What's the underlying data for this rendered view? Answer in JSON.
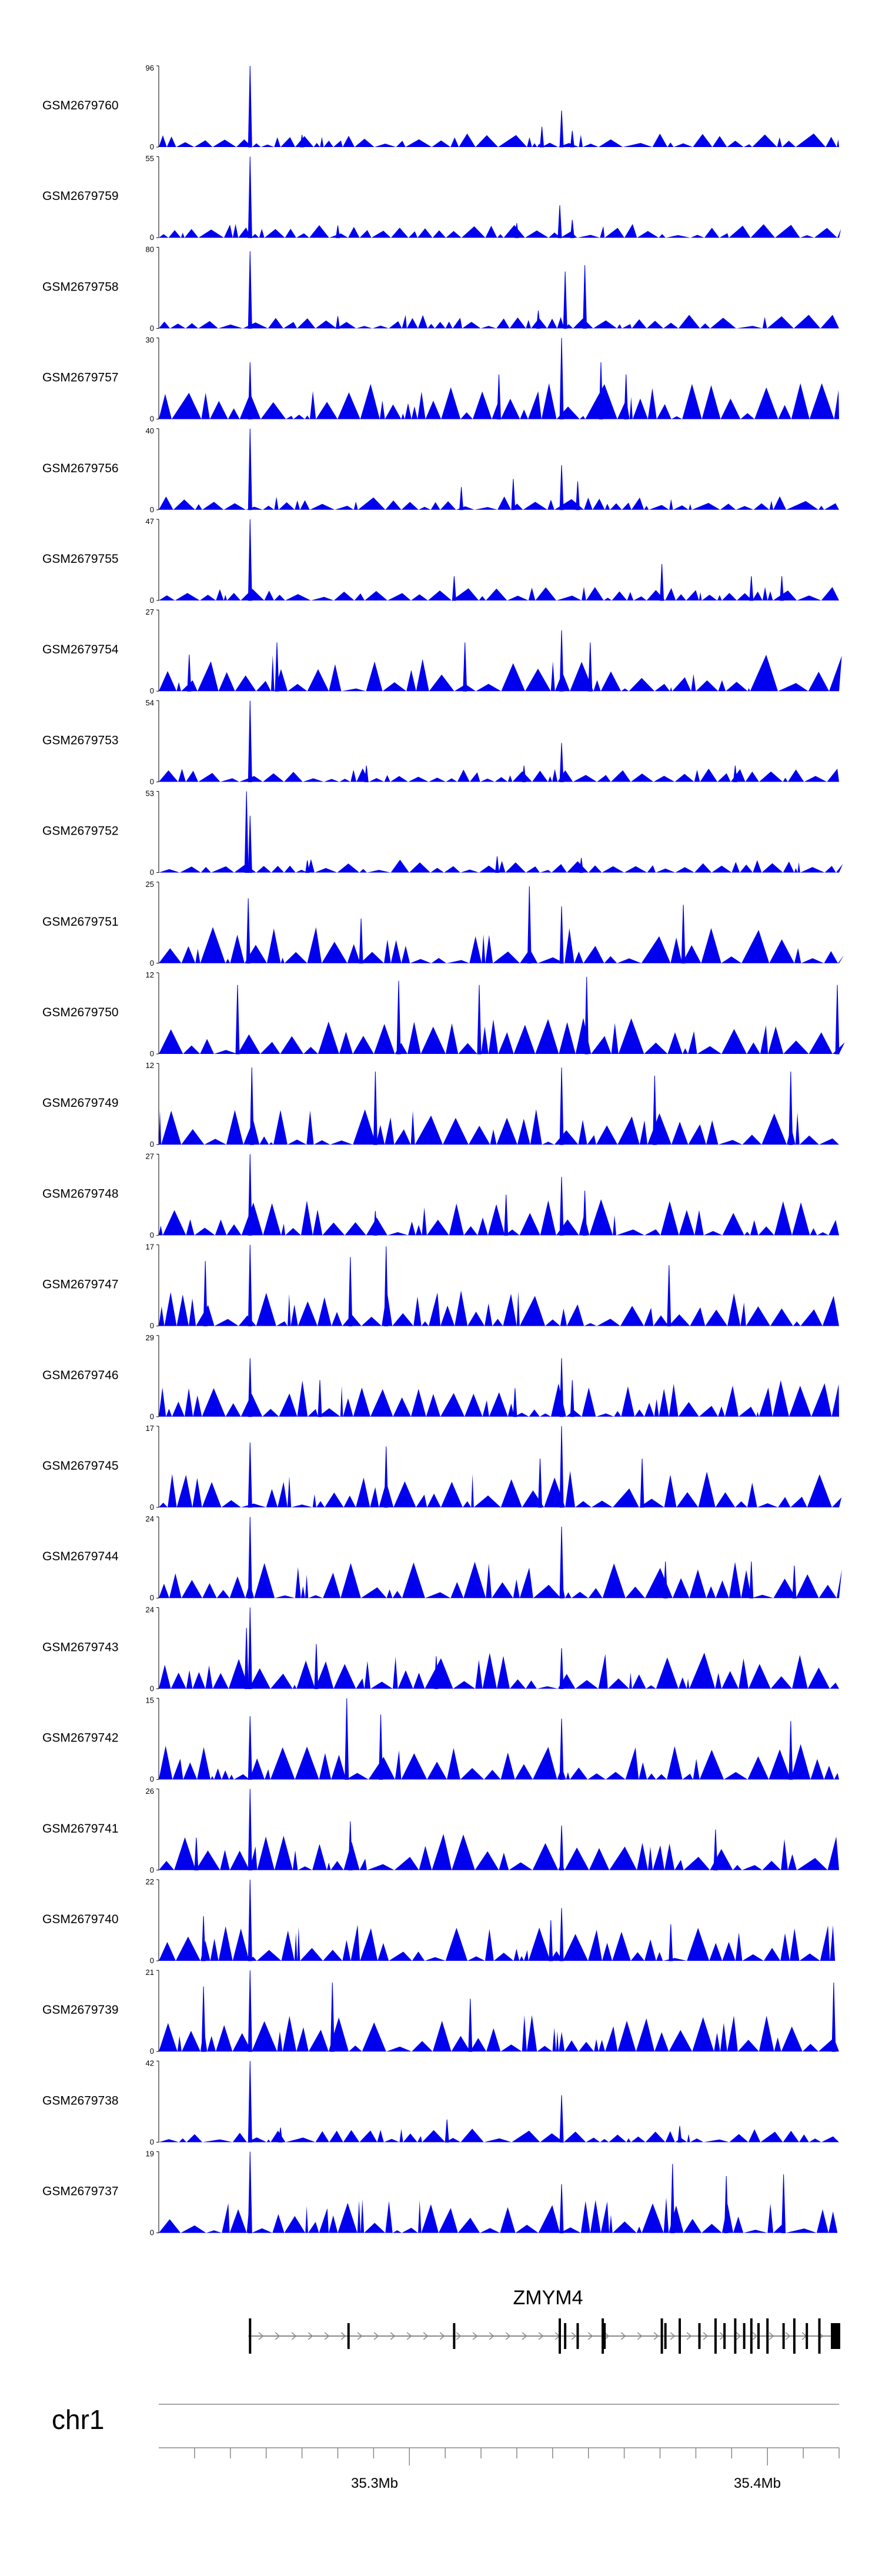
{
  "chart_data": {
    "type": "area",
    "title": "",
    "region": {
      "chromosome": "chr1",
      "start_mb": 35.23,
      "end_mb": 35.42
    },
    "fill_color": "#0000ee",
    "axis_tick_labels": [
      "35.3Mb",
      "35.4Mb"
    ],
    "gene": {
      "name": "ZMYM4",
      "strand": "+",
      "start_mb": 35.255,
      "end_mb": 35.42
    },
    "tracks": [
      {
        "name": "GSM2679760",
        "ymax": "96",
        "ymin": "0",
        "peaks": [
          [
            35.2555,
            1.0
          ],
          [
            35.3425,
            0.45
          ],
          [
            35.337,
            0.25
          ],
          [
            35.3455,
            0.2
          ],
          [
            35.27,
            0.15
          ]
        ]
      },
      {
        "name": "GSM2679759",
        "ymax": "55",
        "ymin": "0",
        "peaks": [
          [
            35.2555,
            1.0
          ],
          [
            35.342,
            0.4
          ],
          [
            35.3455,
            0.22
          ],
          [
            35.33,
            0.18
          ],
          [
            35.28,
            0.15
          ]
        ]
      },
      {
        "name": "GSM2679758",
        "ymax": "80",
        "ymin": "0",
        "peaks": [
          [
            35.2555,
            0.95
          ],
          [
            35.3435,
            0.7
          ],
          [
            35.349,
            0.78
          ],
          [
            35.336,
            0.22
          ],
          [
            35.28,
            0.15
          ]
        ]
      },
      {
        "name": "GSM2679757",
        "ymax": "30",
        "ymin": "0",
        "peaks": [
          [
            35.2555,
            0.7
          ],
          [
            35.3425,
            1.0
          ],
          [
            35.3535,
            0.7
          ],
          [
            35.325,
            0.55
          ],
          [
            35.3605,
            0.55
          ]
        ]
      },
      {
        "name": "GSM2679756",
        "ymax": "40",
        "ymin": "0",
        "peaks": [
          [
            35.2555,
            1.0
          ],
          [
            35.3425,
            0.55
          ],
          [
            35.329,
            0.38
          ],
          [
            35.347,
            0.35
          ],
          [
            35.3145,
            0.28
          ]
        ]
      },
      {
        "name": "GSM2679755",
        "ymax": "47",
        "ymin": "0",
        "peaks": [
          [
            35.2555,
            1.0
          ],
          [
            35.3705,
            0.45
          ],
          [
            35.3125,
            0.3
          ],
          [
            35.3955,
            0.3
          ],
          [
            35.404,
            0.3
          ]
        ]
      },
      {
        "name": "GSM2679754",
        "ymax": "27",
        "ymin": "0",
        "peaks": [
          [
            35.3425,
            0.75
          ],
          [
            35.263,
            0.6
          ],
          [
            35.3155,
            0.6
          ],
          [
            35.3505,
            0.6
          ],
          [
            35.2385,
            0.45
          ]
        ]
      },
      {
        "name": "GSM2679753",
        "ymax": "54",
        "ymin": "0",
        "peaks": [
          [
            35.2555,
            1.0
          ],
          [
            35.3425,
            0.48
          ],
          [
            35.288,
            0.2
          ],
          [
            35.332,
            0.2
          ],
          [
            35.391,
            0.2
          ]
        ]
      },
      {
        "name": "GSM2679752",
        "ymax": "53",
        "ymin": "0",
        "peaks": [
          [
            35.2545,
            1.0
          ],
          [
            35.2555,
            0.7
          ],
          [
            35.3245,
            0.2
          ],
          [
            35.348,
            0.18
          ],
          [
            35.2715,
            0.15
          ]
        ]
      },
      {
        "name": "GSM2679751",
        "ymax": "25",
        "ymin": "0",
        "peaks": [
          [
            35.3335,
            0.95
          ],
          [
            35.255,
            0.8
          ],
          [
            35.3425,
            0.7
          ],
          [
            35.3765,
            0.72
          ],
          [
            35.2865,
            0.55
          ]
        ]
      },
      {
        "name": "GSM2679750",
        "ymax": "12",
        "ymin": "0",
        "peaks": [
          [
            35.3495,
            0.95
          ],
          [
            35.252,
            0.85
          ],
          [
            35.297,
            0.9
          ],
          [
            35.3195,
            0.85
          ],
          [
            35.4195,
            0.85
          ]
        ]
      },
      {
        "name": "GSM2679749",
        "ymax": "12",
        "ymin": "0",
        "peaks": [
          [
            35.256,
            0.95
          ],
          [
            35.3425,
            0.95
          ],
          [
            35.4065,
            0.9
          ],
          [
            35.2905,
            0.9
          ],
          [
            35.3685,
            0.85
          ]
        ]
      },
      {
        "name": "GSM2679748",
        "ymax": "27",
        "ymin": "0",
        "peaks": [
          [
            35.2555,
            1.0
          ],
          [
            35.3425,
            0.72
          ],
          [
            35.349,
            0.55
          ],
          [
            35.327,
            0.5
          ],
          [
            35.2905,
            0.3
          ]
        ]
      },
      {
        "name": "GSM2679747",
        "ymax": "17",
        "ymin": "0",
        "peaks": [
          [
            35.2555,
            1.0
          ],
          [
            35.2935,
            0.98
          ],
          [
            35.2835,
            0.85
          ],
          [
            35.243,
            0.8
          ],
          [
            35.3725,
            0.75
          ]
        ]
      },
      {
        "name": "GSM2679746",
        "ymax": "29",
        "ymin": "0",
        "peaks": [
          [
            35.2555,
            0.72
          ],
          [
            35.3425,
            0.72
          ],
          [
            35.275,
            0.45
          ],
          [
            35.3455,
            0.45
          ],
          [
            35.3295,
            0.35
          ]
        ]
      },
      {
        "name": "GSM2679745",
        "ymax": "17",
        "ymin": "0",
        "peaks": [
          [
            35.3425,
            1.0
          ],
          [
            35.2555,
            0.8
          ],
          [
            35.2935,
            0.75
          ],
          [
            35.3365,
            0.6
          ],
          [
            35.365,
            0.6
          ]
        ]
      },
      {
        "name": "GSM2679744",
        "ymax": "24",
        "ymin": "0",
        "peaks": [
          [
            35.2555,
            1.0
          ],
          [
            35.3425,
            0.88
          ],
          [
            35.3715,
            0.45
          ],
          [
            35.3955,
            0.45
          ],
          [
            35.4075,
            0.4
          ]
        ]
      },
      {
        "name": "GSM2679743",
        "ymax": "24",
        "ymin": "0",
        "peaks": [
          [
            35.2555,
            1.0
          ],
          [
            35.2545,
            0.75
          ],
          [
            35.274,
            0.55
          ],
          [
            35.3425,
            0.5
          ],
          [
            35.3075,
            0.4
          ]
        ]
      },
      {
        "name": "GSM2679742",
        "ymax": "15",
        "ymin": "0",
        "peaks": [
          [
            35.2825,
            1.0
          ],
          [
            35.2555,
            0.78
          ],
          [
            35.292,
            0.8
          ],
          [
            35.3425,
            0.75
          ],
          [
            35.4065,
            0.72
          ]
        ]
      },
      {
        "name": "GSM2679741",
        "ymax": "26",
        "ymin": "0",
        "peaks": [
          [
            35.2555,
            1.0
          ],
          [
            35.2835,
            0.6
          ],
          [
            35.3425,
            0.55
          ],
          [
            35.3855,
            0.5
          ],
          [
            35.2405,
            0.4
          ]
        ]
      },
      {
        "name": "GSM2679740",
        "ymax": "22",
        "ymin": "0",
        "peaks": [
          [
            35.2555,
            1.0
          ],
          [
            35.3425,
            0.65
          ],
          [
            35.2425,
            0.55
          ],
          [
            35.3395,
            0.5
          ],
          [
            35.373,
            0.45
          ]
        ]
      },
      {
        "name": "GSM2679739",
        "ymax": "21",
        "ymin": "0",
        "peaks": [
          [
            35.2555,
            1.0
          ],
          [
            35.2785,
            0.85
          ],
          [
            35.2425,
            0.8
          ],
          [
            35.317,
            0.65
          ],
          [
            35.4185,
            0.85
          ]
        ]
      },
      {
        "name": "GSM2679738",
        "ymax": "42",
        "ymin": "0",
        "peaks": [
          [
            35.2555,
            1.0
          ],
          [
            35.3425,
            0.58
          ],
          [
            35.3105,
            0.28
          ],
          [
            35.3755,
            0.2
          ],
          [
            35.264,
            0.18
          ]
        ]
      },
      {
        "name": "GSM2679737",
        "ymax": "19",
        "ymin": "0",
        "peaks": [
          [
            35.2555,
            1.0
          ],
          [
            35.3735,
            0.85
          ],
          [
            35.3885,
            0.7
          ],
          [
            35.4045,
            0.72
          ],
          [
            35.3425,
            0.6
          ]
        ]
      }
    ]
  }
}
